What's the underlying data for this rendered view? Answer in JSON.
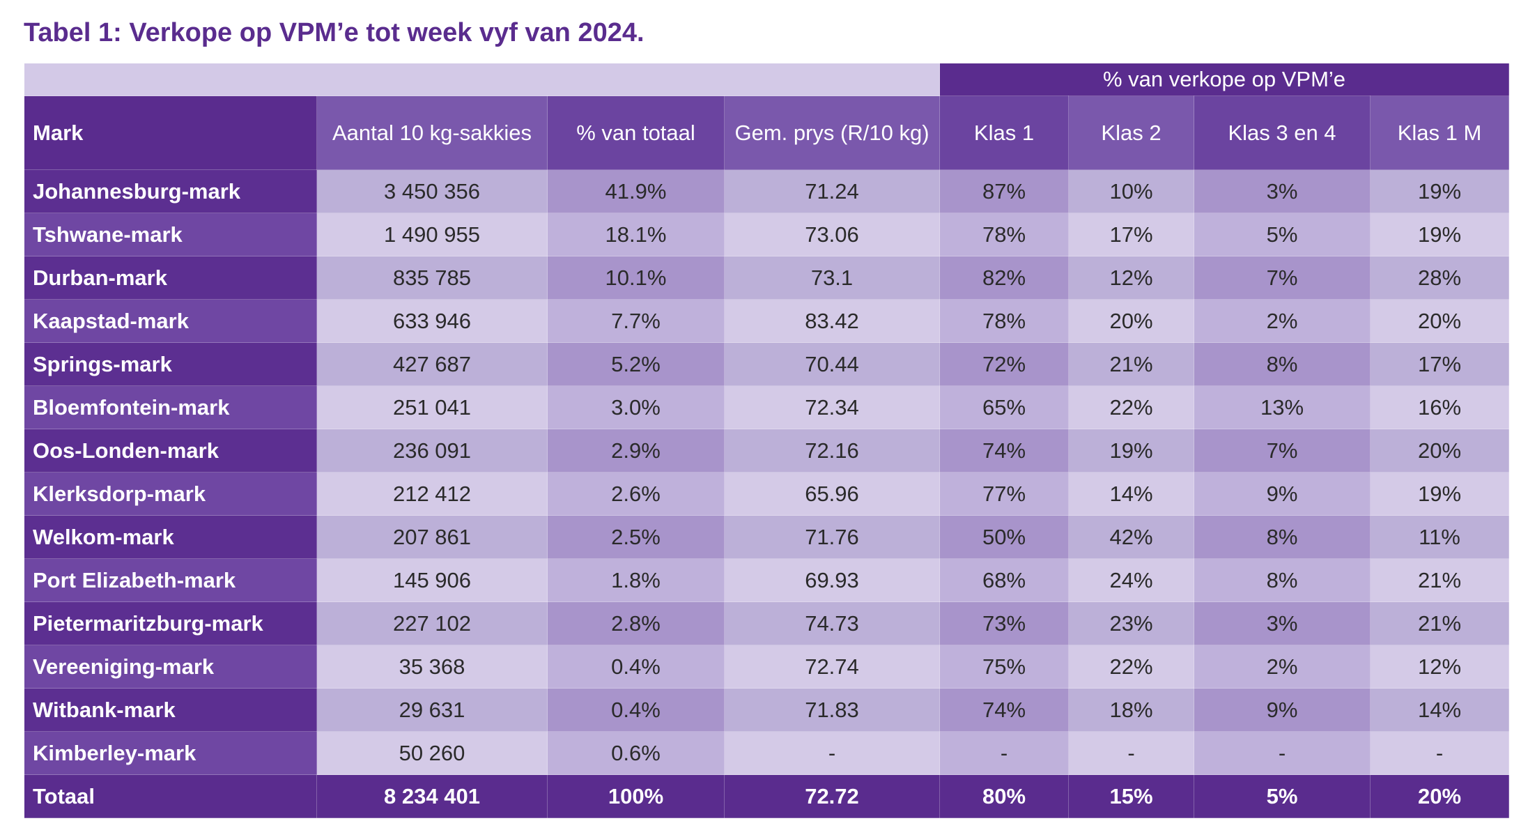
{
  "title": "Tabel 1: Verkope op VPM’e tot week vyf van 2024.",
  "table": {
    "super_header": "% van verkope op VPM’e",
    "header": [
      "Mark",
      "Aantal 10 kg-sakkies",
      "% van totaal",
      "Gem. prys (R/10 kg)",
      "Klas 1",
      "Klas 2",
      "Klas 3 en 4",
      "Klas 1 M"
    ],
    "rows": [
      [
        "Johannesburg-mark",
        "3 450 356",
        "41.9%",
        "71.24",
        "87%",
        "10%",
        "3%",
        "19%"
      ],
      [
        "Tshwane-mark",
        "1 490 955",
        "18.1%",
        "73.06",
        "78%",
        "17%",
        "5%",
        "19%"
      ],
      [
        "Durban-mark",
        "835 785",
        "10.1%",
        "73.1",
        "82%",
        "12%",
        "7%",
        "28%"
      ],
      [
        "Kaapstad-mark",
        "633 946",
        "7.7%",
        "83.42",
        "78%",
        "20%",
        "2%",
        "20%"
      ],
      [
        "Springs-mark",
        "427 687",
        "5.2%",
        "70.44",
        "72%",
        "21%",
        "8%",
        "17%"
      ],
      [
        "Bloemfontein-mark",
        "251 041",
        "3.0%",
        "72.34",
        "65%",
        "22%",
        "13%",
        "16%"
      ],
      [
        "Oos-Londen-mark",
        "236 091",
        "2.9%",
        "72.16",
        "74%",
        "19%",
        "7%",
        "20%"
      ],
      [
        "Klerksdorp-mark",
        "212 412",
        "2.6%",
        "65.96",
        "77%",
        "14%",
        "9%",
        "19%"
      ],
      [
        "Welkom-mark",
        "207 861",
        "2.5%",
        "71.76",
        "50%",
        "42%",
        "8%",
        "11%"
      ],
      [
        "Port Elizabeth-mark",
        "145 906",
        "1.8%",
        "69.93",
        "68%",
        "24%",
        "8%",
        "21%"
      ],
      [
        "Pietermaritzburg-mark",
        "227 102",
        "2.8%",
        "74.73",
        "73%",
        "23%",
        "3%",
        "21%"
      ],
      [
        "Vereeniging-mark",
        "35 368",
        "0.4%",
        "72.74",
        "75%",
        "22%",
        "2%",
        "12%"
      ],
      [
        "Witbank-mark",
        "29 631",
        "0.4%",
        "71.83",
        "74%",
        "18%",
        "9%",
        "14%"
      ],
      [
        "Kimberley-mark",
        "50 260",
        "0.6%",
        "-",
        "-",
        "-",
        "-",
        "-"
      ]
    ],
    "total": [
      "Totaal",
      "8 234 401",
      "100%",
      "72.72",
      "80%",
      "15%",
      "5%",
      "20%"
    ]
  }
}
